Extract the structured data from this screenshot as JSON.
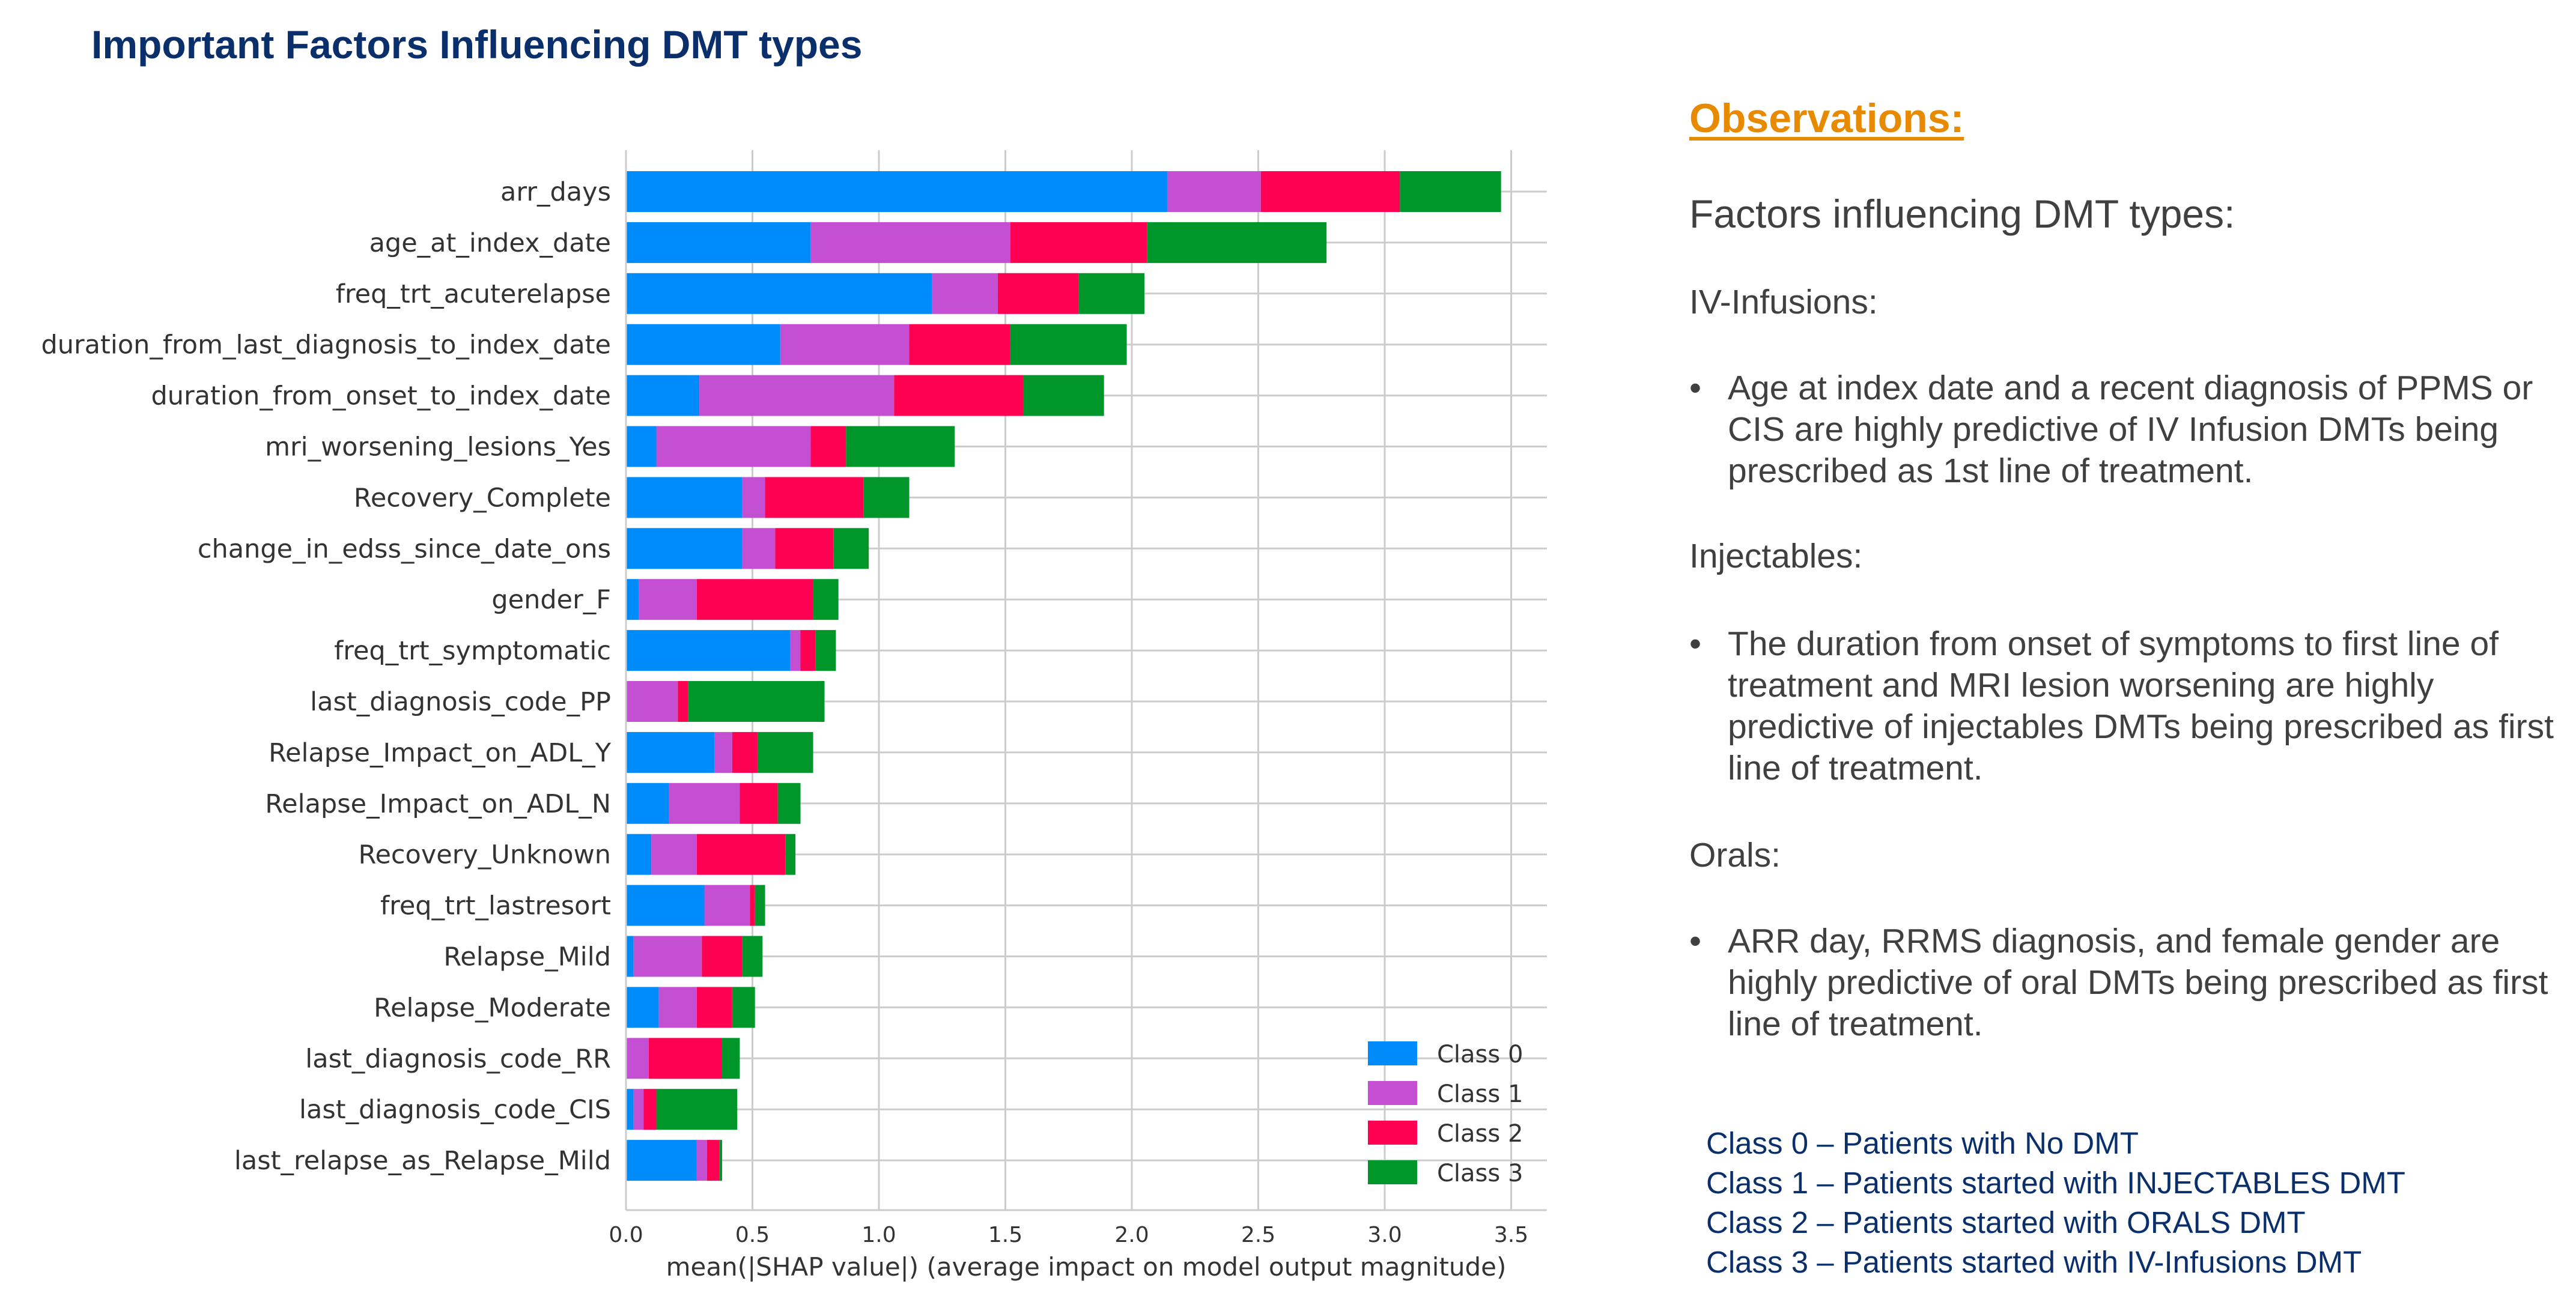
{
  "title": "Important Factors Influencing DMT types",
  "observations": {
    "heading": "Observations:",
    "subheading": "Factors influencing DMT types:",
    "sections": [
      {
        "label": "IV-Infusions:",
        "bullet": "Age at index date and a recent diagnosis of PPMS or CIS are highly predictive of IV Infusion DMTs being prescribed as 1st line of treatment."
      },
      {
        "label": "Injectables:",
        "bullet": "The duration from onset of symptoms to first line of treatment and MRI lesion worsening are highly predictive of injectables DMTs being prescribed as first line of treatment."
      },
      {
        "label": "Orals:",
        "bullet": "ARR day,  RRMS diagnosis, and female gender are highly predictive of oral DMTs being prescribed as first line of treatment."
      }
    ],
    "bullet_symbol": "•",
    "class_legend": [
      "Class 0 – Patients with No DMT",
      "Class 1 – Patients started with INJECTABLES DMT",
      "Class 2 – Patients started with ORALS DMT",
      "Class 3 – Patients started with IV-Infusions DMT"
    ]
  },
  "chart_data": {
    "type": "bar",
    "orientation": "horizontal",
    "stacked": true,
    "title": "",
    "xlabel": "mean(|SHAP value|) (average impact on model output magnitude)",
    "ylabel": "",
    "xlim": [
      0,
      3.65
    ],
    "xticks": [
      "0.0",
      "0.5",
      "1.0",
      "1.5",
      "2.0",
      "2.5",
      "3.0",
      "3.5"
    ],
    "grid": true,
    "legend_position": "bottom-right",
    "categories": [
      "arr_days",
      "age_at_index_date",
      "freq_trt_acuterelapse",
      "duration_from_last_diagnosis_to_index_date",
      "duration_from_onset_to_index_date",
      "mri_worsening_lesions_Yes",
      "Recovery_Complete",
      "change_in_edss_since_date_ons",
      "gender_F",
      "freq_trt_symptomatic",
      "last_diagnosis_code_PP",
      "Relapse_Impact_on_ADL_Y",
      "Relapse_Impact_on_ADL_N",
      "Recovery_Unknown",
      "freq_trt_lastresort",
      "Relapse_Mild",
      "Relapse_Moderate",
      "last_diagnosis_code_RR",
      "last_diagnosis_code_CIS",
      "last_relapse_as_Relapse_Mild"
    ],
    "series": [
      {
        "name": "Class 0",
        "color": "#008bfb",
        "values": [
          2.14,
          0.73,
          1.21,
          0.61,
          0.29,
          0.12,
          0.46,
          0.46,
          0.05,
          0.65,
          0.005,
          0.35,
          0.17,
          0.1,
          0.31,
          0.03,
          0.13,
          0.0,
          0.03,
          0.28
        ]
      },
      {
        "name": "Class 1",
        "color": "#c44fd3",
        "values": [
          0.37,
          0.79,
          0.26,
          0.51,
          0.77,
          0.61,
          0.09,
          0.13,
          0.23,
          0.04,
          0.2,
          0.07,
          0.28,
          0.18,
          0.18,
          0.27,
          0.15,
          0.09,
          0.04,
          0.04
        ]
      },
      {
        "name": "Class 2",
        "color": "#ff0052",
        "values": [
          0.55,
          0.54,
          0.32,
          0.4,
          0.51,
          0.14,
          0.39,
          0.23,
          0.46,
          0.06,
          0.04,
          0.1,
          0.15,
          0.35,
          0.02,
          0.16,
          0.14,
          0.29,
          0.05,
          0.05
        ]
      },
      {
        "name": "Class 3",
        "color": "#00962a",
        "values": [
          0.4,
          0.71,
          0.26,
          0.46,
          0.32,
          0.43,
          0.18,
          0.14,
          0.1,
          0.08,
          0.54,
          0.22,
          0.09,
          0.04,
          0.04,
          0.08,
          0.09,
          0.07,
          0.32,
          0.01
        ]
      }
    ]
  }
}
